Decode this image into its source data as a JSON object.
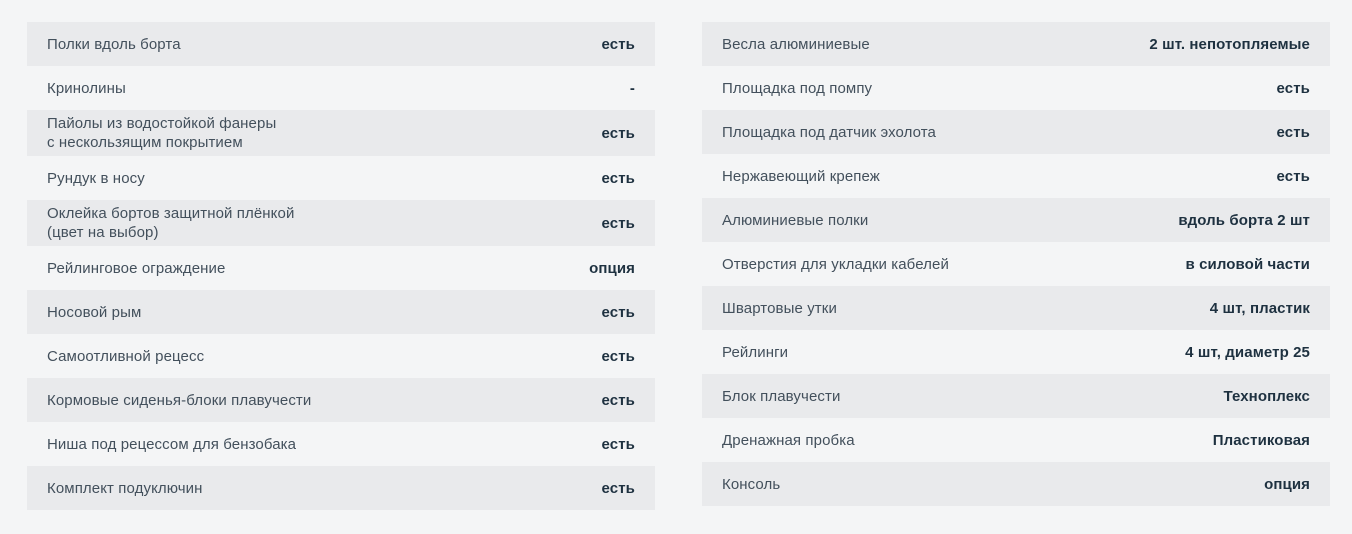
{
  "theme": {
    "page_bg": "#f4f5f6",
    "row_alt_bg": "#e9eaec",
    "label_color": "#43505c",
    "value_color": "#1e3140"
  },
  "specs": {
    "columns": [
      {
        "rows": [
          {
            "label": "Полки вдоль борта",
            "value": "есть"
          },
          {
            "label": "Кринолины",
            "value": "-"
          },
          {
            "label": "Пайолы из водостойкой фанеры\nс нескользящим покрытием",
            "value": "есть"
          },
          {
            "label": "Рундук в носу",
            "value": "есть"
          },
          {
            "label": "Оклейка бортов защитной плёнкой\n(цвет на выбор)",
            "value": "есть"
          },
          {
            "label": "Рейлинговое ограждение",
            "value": "опция"
          },
          {
            "label": "Носовой рым",
            "value": "есть"
          },
          {
            "label": "Самоотливной рецесс",
            "value": "есть"
          },
          {
            "label": "Кормовые сиденья-блоки плавучести",
            "value": "есть"
          },
          {
            "label": "Ниша под рецессом для бензобака",
            "value": "есть"
          },
          {
            "label": "Комплект подуключин",
            "value": "есть"
          }
        ]
      },
      {
        "rows": [
          {
            "label": "Весла алюминиевые",
            "value": "2 шт. непотопляемые"
          },
          {
            "label": "Площадка под помпу",
            "value": "есть"
          },
          {
            "label": "Площадка под датчик эхолота",
            "value": "есть"
          },
          {
            "label": "Нержавеющий крепеж",
            "value": "есть"
          },
          {
            "label": "Алюминиевые полки",
            "value": "вдоль борта 2 шт"
          },
          {
            "label": "Отверстия для укладки кабелей",
            "value": "в силовой части"
          },
          {
            "label": "Швартовые утки",
            "value": "4 шт, пластик"
          },
          {
            "label": "Рейлинги",
            "value": "4 шт, диаметр 25"
          },
          {
            "label": "Блок плавучести",
            "value": "Техноплекс"
          },
          {
            "label": "Дренажная пробка",
            "value": "Пластиковая"
          },
          {
            "label": "Консоль",
            "value": "опция"
          }
        ]
      }
    ]
  }
}
